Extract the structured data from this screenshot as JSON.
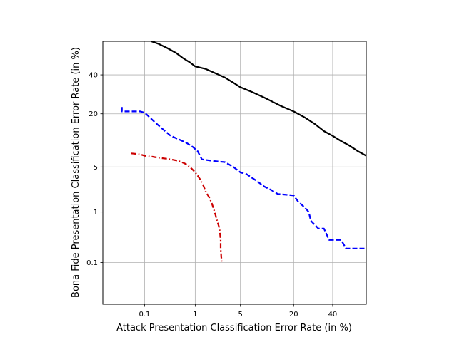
{
  "chart_data": {
    "type": "line",
    "xlabel": "Attack Presentation Classification Error Rate (in %)",
    "ylabel": "Bona Fide Presentation Classification Error Rate (in %)",
    "xscale": "normal-deviate",
    "yscale": "normal-deviate",
    "xlim": [
      0.01,
      60
    ],
    "ylim": [
      0.01,
      60
    ],
    "grid": true,
    "xticks": [
      0.1,
      1,
      5,
      20,
      40
    ],
    "xtick_labels": [
      "0.1",
      "1",
      "5",
      "20",
      "40"
    ],
    "yticks": [
      0.1,
      1,
      5,
      20,
      40
    ],
    "ytick_labels": [
      "0.1",
      "1",
      "5",
      "20",
      "40"
    ],
    "series": [
      {
        "color": "#000000",
        "style": "solid",
        "x": [
          0.14,
          0.2,
          0.3,
          0.45,
          0.6,
          0.8,
          1.0,
          1.5,
          2.0,
          3.0,
          4.0,
          5.0,
          7.0,
          10.0,
          15.0,
          20.0,
          25.0,
          30.0,
          35.0,
          40.0,
          45.0,
          50.0,
          55.0,
          60.0
        ],
        "y": [
          60.0,
          58.5,
          56.0,
          53.0,
          50.0,
          47.5,
          45.0,
          43.5,
          41.5,
          38.5,
          35.5,
          33.0,
          30.5,
          27.5,
          23.5,
          21.0,
          18.5,
          16.0,
          13.5,
          12.0,
          10.5,
          9.3,
          8.0,
          7.0
        ]
      },
      {
        "color": "#0000ff",
        "style": "dashed",
        "x": [
          0.03,
          0.03,
          0.05,
          0.08,
          0.1,
          0.13,
          0.17,
          0.25,
          0.35,
          0.5,
          0.7,
          0.9,
          1.1,
          1.3,
          2.0,
          3.0,
          4.0,
          5.0,
          6.0,
          8.0,
          10.0,
          12.0,
          14.0,
          20.0,
          22.0,
          25.0,
          27.0,
          28.0,
          32.0,
          35.0,
          38.0,
          45.0,
          48.0,
          60.0
        ],
        "y": [
          23.0,
          21.0,
          21.0,
          21.0,
          20.5,
          18.5,
          16.5,
          14.0,
          12.0,
          11.0,
          10.0,
          9.0,
          8.0,
          6.3,
          6.0,
          5.8,
          5.0,
          4.2,
          4.0,
          3.2,
          2.6,
          2.3,
          2.0,
          1.9,
          1.5,
          1.2,
          1.0,
          0.7,
          0.5,
          0.5,
          0.3,
          0.3,
          0.2,
          0.2
        ]
      },
      {
        "color": "#cc0000",
        "style": "dashdot",
        "x": [
          0.05,
          0.08,
          0.1,
          0.15,
          0.2,
          0.3,
          0.4,
          0.5,
          0.6,
          0.7,
          0.8,
          0.9,
          1.0,
          1.1,
          1.2,
          1.3,
          1.4,
          1.5,
          1.7,
          1.9,
          2.1,
          2.3,
          2.5,
          2.6,
          2.6,
          2.7
        ],
        "y": [
          7.5,
          7.3,
          7.0,
          6.8,
          6.6,
          6.4,
          6.2,
          6.0,
          5.7,
          5.4,
          5.0,
          4.6,
          4.2,
          3.8,
          3.4,
          3.0,
          2.6,
          2.2,
          1.8,
          1.4,
          1.0,
          0.7,
          0.5,
          0.3,
          0.2,
          0.1
        ]
      }
    ]
  }
}
